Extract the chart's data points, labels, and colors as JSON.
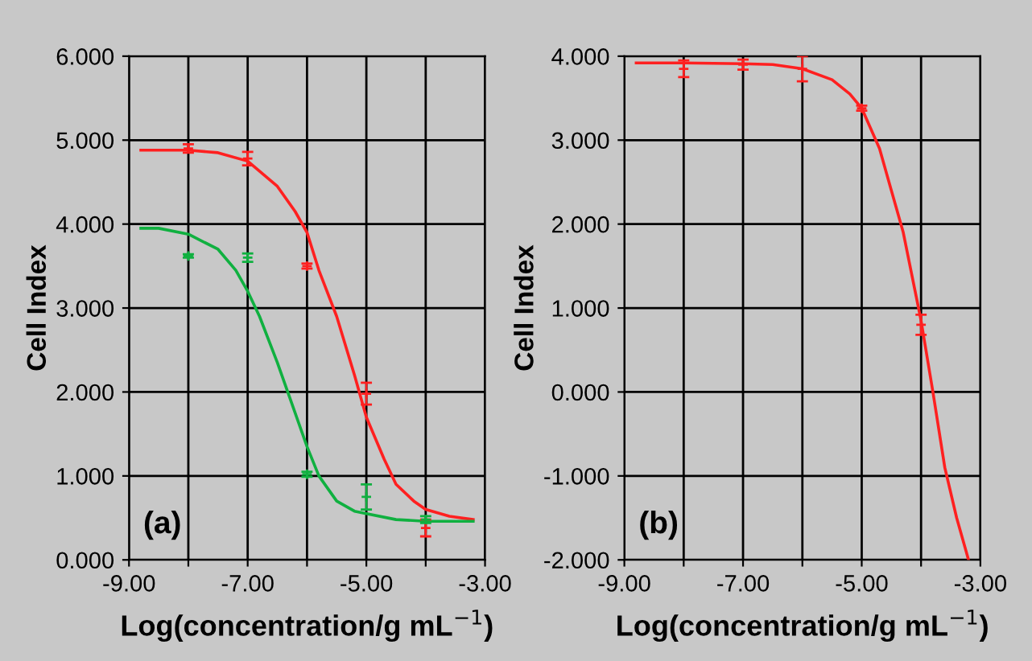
{
  "chart_data": [
    {
      "type": "line",
      "xlabel": "Log(concentration/g mL$^{−1}$)",
      "ylabel": "Cell Index",
      "annotations": [
        "(a)"
      ],
      "xlim": [
        -9,
        -3
      ],
      "xticks": [
        {
          "value": -9,
          "label": "-9.00"
        },
        {
          "value": -8,
          "label": null
        },
        {
          "value": -7,
          "label": "-7.00"
        },
        {
          "value": -6,
          "label": null
        },
        {
          "value": -5,
          "label": "-5.00"
        },
        {
          "value": -4,
          "label": null
        },
        {
          "value": -3,
          "label": "-3.00"
        }
      ],
      "ylim": [
        0,
        6
      ],
      "yticks": [
        {
          "value": 0,
          "label": "0.000"
        },
        {
          "value": 1,
          "label": "1.000"
        },
        {
          "value": 2,
          "label": "2.000"
        },
        {
          "value": 3,
          "label": "3.000"
        },
        {
          "value": 4,
          "label": "4.000"
        },
        {
          "value": 5,
          "label": "5.000"
        },
        {
          "value": 6,
          "label": "6.000"
        }
      ],
      "grid": true,
      "series": [
        {
          "color": "#ff2020",
          "x": [
            -8.8,
            -8,
            -7.5,
            -7,
            -6.5,
            -6.2,
            -6,
            -5.8,
            -5.5,
            -5.2,
            -5,
            -4.7,
            -4.5,
            -4.2,
            -4,
            -3.6,
            -3.2
          ],
          "values": [
            4.88,
            4.88,
            4.85,
            4.75,
            4.45,
            4.15,
            3.9,
            3.45,
            2.9,
            2.2,
            1.7,
            1.2,
            0.9,
            0.7,
            0.6,
            0.52,
            0.48
          ]
        },
        {
          "color": "#10b040",
          "x": [
            -8.8,
            -8.5,
            -8,
            -7.5,
            -7.2,
            -7,
            -6.8,
            -6.5,
            -6.3,
            -6,
            -5.8,
            -5.5,
            -5.2,
            -5,
            -4.5,
            -4,
            -3.2
          ],
          "values": [
            3.95,
            3.95,
            3.88,
            3.7,
            3.45,
            3.2,
            2.9,
            2.35,
            1.95,
            1.35,
            1.0,
            0.7,
            0.58,
            0.55,
            0.48,
            0.46,
            0.46
          ]
        },
        {
          "type": "scatter",
          "marker": "cross",
          "color": "#ff2020",
          "x": [
            -8,
            -7,
            -6,
            -5,
            -4
          ],
          "values": [
            4.9,
            4.78,
            3.5,
            1.98,
            0.38
          ],
          "errors": [
            0.05,
            0.08,
            0.03,
            0.13,
            0.1
          ]
        },
        {
          "type": "scatter",
          "marker": "cross",
          "color": "#10b040",
          "x": [
            -8,
            -7,
            -6,
            -5,
            -4
          ],
          "values": [
            3.62,
            3.6,
            1.02,
            0.75,
            0.48
          ],
          "errors": [
            0.02,
            0.05,
            0.03,
            0.15,
            0.04
          ]
        }
      ]
    },
    {
      "type": "line",
      "xlabel": "Log(concentration/g mL$^{−1}$)",
      "ylabel": "Cell Index",
      "annotations": [
        "(b)"
      ],
      "xlim": [
        -9,
        -3
      ],
      "xticks": [
        {
          "value": -9,
          "label": "-9.00"
        },
        {
          "value": -8,
          "label": null
        },
        {
          "value": -7,
          "label": "-7.00"
        },
        {
          "value": -6,
          "label": null
        },
        {
          "value": -5,
          "label": "-5.00"
        },
        {
          "value": -4,
          "label": null
        },
        {
          "value": -3,
          "label": "-3.00"
        }
      ],
      "ylim": [
        -2,
        4
      ],
      "yticks": [
        {
          "value": -2,
          "label": "-2.000"
        },
        {
          "value": -1,
          "label": "-1.000"
        },
        {
          "value": 0,
          "label": "0.000"
        },
        {
          "value": 1,
          "label": "1.000"
        },
        {
          "value": 2,
          "label": "2.000"
        },
        {
          "value": 3,
          "label": "3.000"
        },
        {
          "value": 4,
          "label": "4.000"
        }
      ],
      "grid": true,
      "series": [
        {
          "color": "#ff2020",
          "x": [
            -8.8,
            -8,
            -7,
            -6.5,
            -6,
            -5.5,
            -5.2,
            -5,
            -4.7,
            -4.5,
            -4.3,
            -4.1,
            -4,
            -3.8,
            -3.6,
            -3.4,
            -3.2
          ],
          "values": [
            3.92,
            3.92,
            3.91,
            3.9,
            3.85,
            3.72,
            3.55,
            3.38,
            2.9,
            2.4,
            1.9,
            1.2,
            0.85,
            0.0,
            -0.9,
            -1.5,
            -2.0
          ]
        },
        {
          "type": "scatter",
          "marker": "cross",
          "color": "#ff2020",
          "x": [
            -8,
            -7,
            -6,
            -5,
            -4
          ],
          "values": [
            3.85,
            3.9,
            3.85,
            3.38,
            0.8
          ],
          "errors": [
            0.1,
            0.06,
            0.15,
            0.03,
            0.12
          ]
        }
      ]
    }
  ]
}
